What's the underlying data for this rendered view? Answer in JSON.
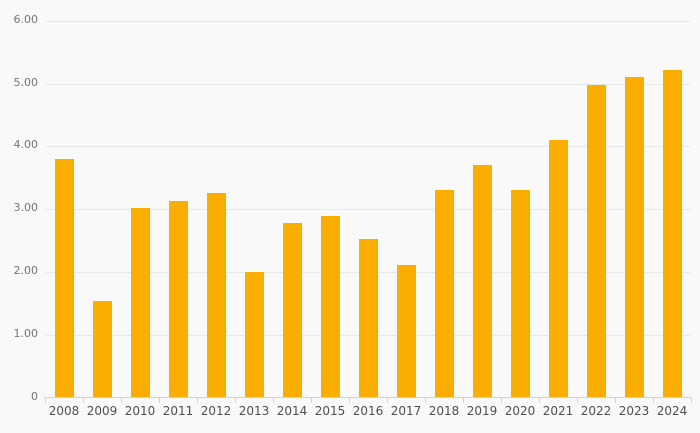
{
  "chart": {
    "title": "",
    "background_color": "#f9f9f9",
    "bar_color": "#faae02",
    "grid_color": "#e8e8e8",
    "axis_color": "#ccd3df",
    "y_label_color": "#757575",
    "x_label_color": "#4f4f4f"
  },
  "chart_data": {
    "type": "bar",
    "title": "",
    "xlabel": "",
    "ylabel": "",
    "categories": [
      "2008",
      "2009",
      "2010",
      "2011",
      "2012",
      "2013",
      "2014",
      "2015",
      "2016",
      "2017",
      "2018",
      "2019",
      "2020",
      "2021",
      "2022",
      "2023",
      "2024"
    ],
    "values": [
      3.8,
      1.55,
      3.02,
      3.13,
      3.26,
      2.0,
      2.78,
      2.9,
      2.52,
      2.12,
      3.3,
      3.7,
      3.3,
      4.1,
      4.98,
      5.1,
      5.21
    ],
    "ylim": [
      0,
      6
    ],
    "ytick_interval": 1,
    "ytick_labels": [
      "0",
      "1.00",
      "2.00",
      "3.00",
      "4.00",
      "5.00",
      "6.00"
    ],
    "grid": "horizontal",
    "legend": "none"
  }
}
